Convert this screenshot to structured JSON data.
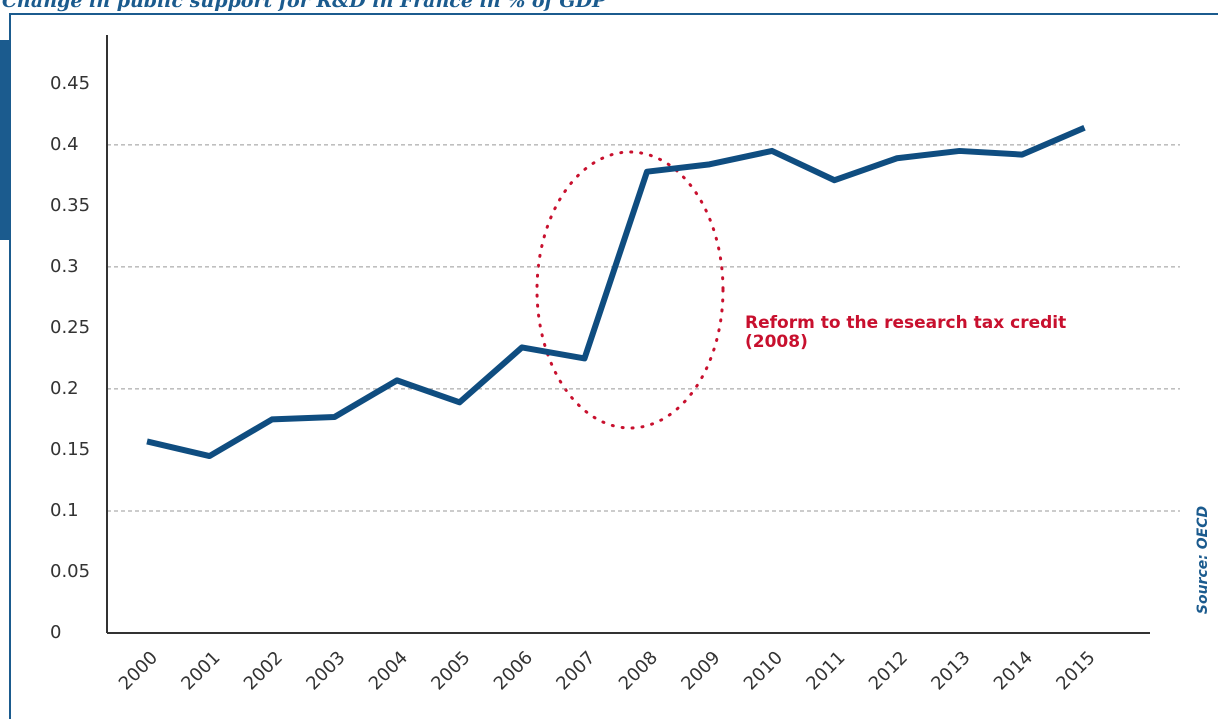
{
  "chart_data": {
    "type": "line",
    "title": "Change in public support for R&D in France in % of GDP",
    "categories": [
      "2000",
      "2001",
      "2002",
      "2003",
      "2004",
      "2005",
      "2006",
      "2007",
      "2008",
      "2009",
      "2010",
      "2011",
      "2012",
      "2013",
      "2014",
      "2015"
    ],
    "series": [
      {
        "name": "Public support for R&D",
        "color": "#0f4d80",
        "values": [
          0.157,
          0.145,
          0.175,
          0.177,
          0.207,
          0.189,
          0.234,
          0.225,
          0.378,
          0.384,
          0.395,
          0.371,
          0.389,
          0.395,
          0.392,
          0.414
        ]
      }
    ],
    "ylim": [
      0,
      0.49
    ],
    "yticks": [
      0,
      0.05,
      0.1,
      0.15,
      0.2,
      0.25,
      0.3,
      0.35,
      0.4,
      0.45
    ],
    "grid": true,
    "annotation": [
      "Reform to the research tax credit",
      "(2008)"
    ],
    "source": "Source: OECD"
  }
}
